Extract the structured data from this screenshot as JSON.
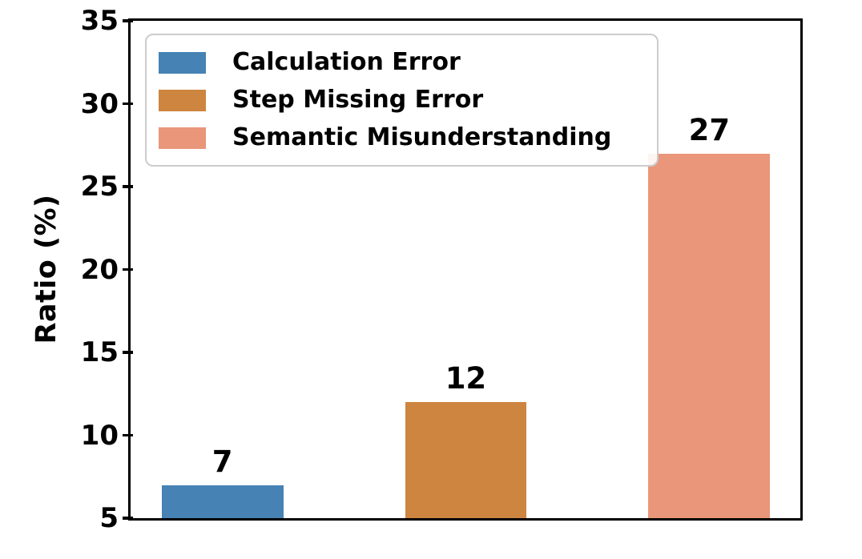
{
  "chart_data": {
    "type": "bar",
    "title": "",
    "xlabel": "",
    "ylabel": "Ratio (%)",
    "ylim": [
      5,
      35
    ],
    "yticks": [
      35,
      30,
      25,
      20,
      15,
      10,
      5
    ],
    "grid": false,
    "legend_position": "upper-left",
    "background_color": "#ffffff",
    "axis_color": "#000000",
    "series": [
      {
        "name": "Calculation Error",
        "value": 7,
        "color": "#4682B4"
      },
      {
        "name": "Step Missing Error",
        "value": 12,
        "color": "#CD853F"
      },
      {
        "name": "Semantic Misunderstanding",
        "value": 27,
        "color": "#E9967A"
      }
    ]
  }
}
